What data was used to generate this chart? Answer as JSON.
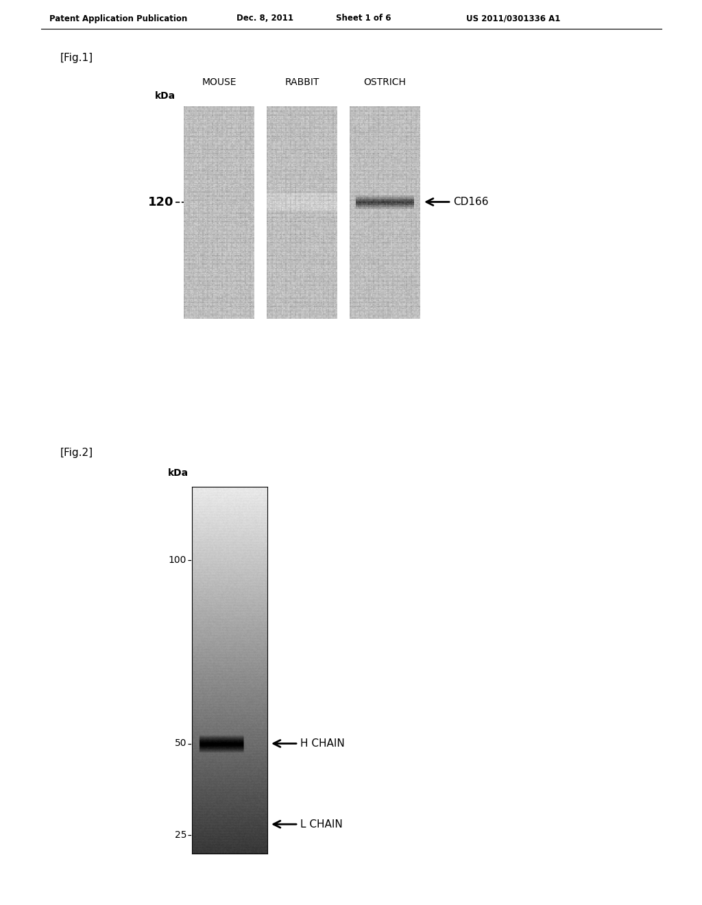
{
  "page_width": 10.24,
  "page_height": 13.2,
  "bg_color": "#ffffff",
  "header_text": "Patent Application Publication",
  "header_date": "Dec. 8, 2011",
  "header_sheet": "Sheet 1 of 6",
  "header_patent": "US 2011/0301336 A1",
  "fig1_label": "[Fig.1]",
  "fig2_label": "[Fig.2]",
  "fig1_columns": [
    "MOUSE",
    "RABBIT",
    "OSTRICH"
  ],
  "fig1_kda_label": "kDa",
  "fig1_120_label": "120",
  "fig1_cd166_label": "CD166",
  "fig2_kda_label": "kDa",
  "fig2_100_label": "100",
  "fig2_50_label": "50",
  "fig2_25_label": "25",
  "fig2_hchain_label": "H CHAIN",
  "fig2_lchain_label": "L CHAIN"
}
